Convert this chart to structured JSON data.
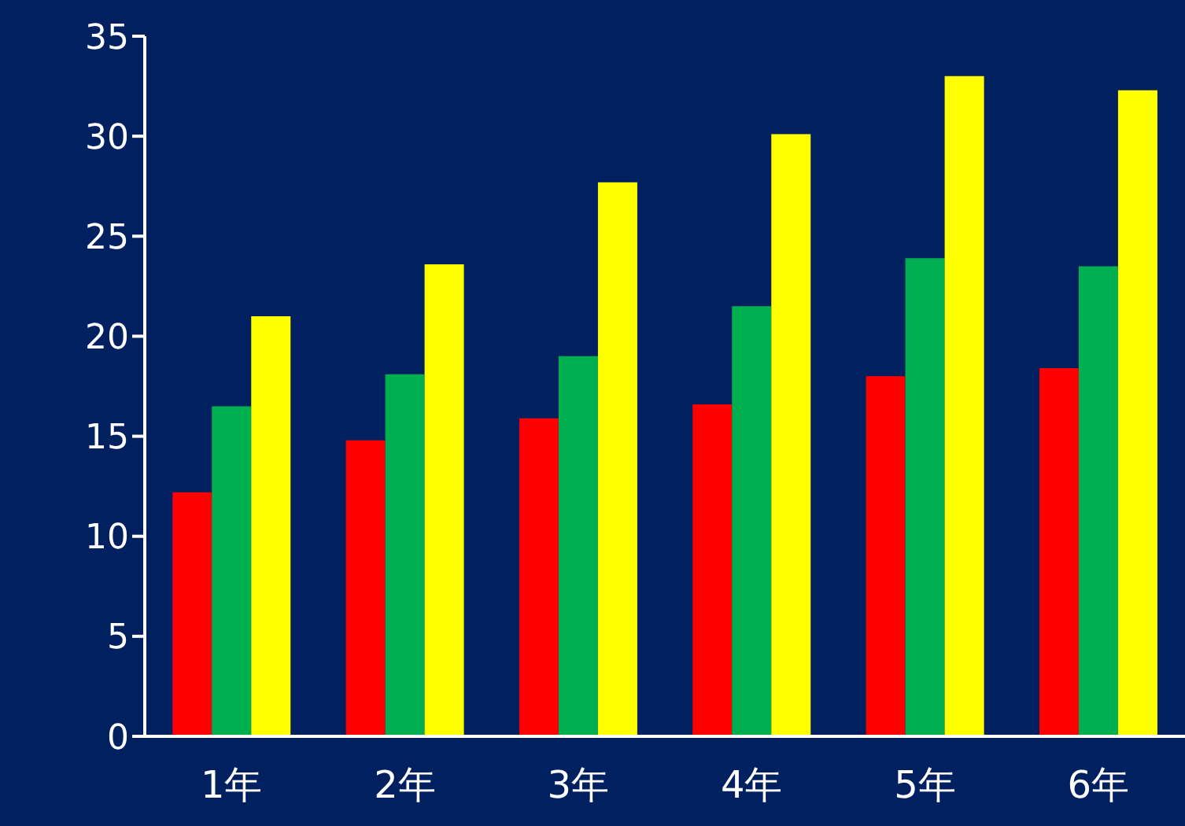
{
  "chart_data": {
    "type": "bar",
    "categories": [
      "1年",
      "2年",
      "3年",
      "4年",
      "5年",
      "6年"
    ],
    "series": [
      {
        "color": "#ff0000",
        "values": [
          12.2,
          14.8,
          15.9,
          16.6,
          18.0,
          18.4
        ]
      },
      {
        "color": "#00b050",
        "values": [
          16.5,
          18.1,
          19.0,
          21.5,
          23.9,
          23.5
        ]
      },
      {
        "color": "#ffff00",
        "values": [
          21.0,
          23.6,
          27.7,
          30.1,
          33.0,
          32.3
        ]
      }
    ],
    "ylim": [
      0,
      35
    ],
    "yticks": [
      0,
      5,
      10,
      15,
      20,
      25,
      30,
      35
    ],
    "grid": false,
    "legend": false
  }
}
